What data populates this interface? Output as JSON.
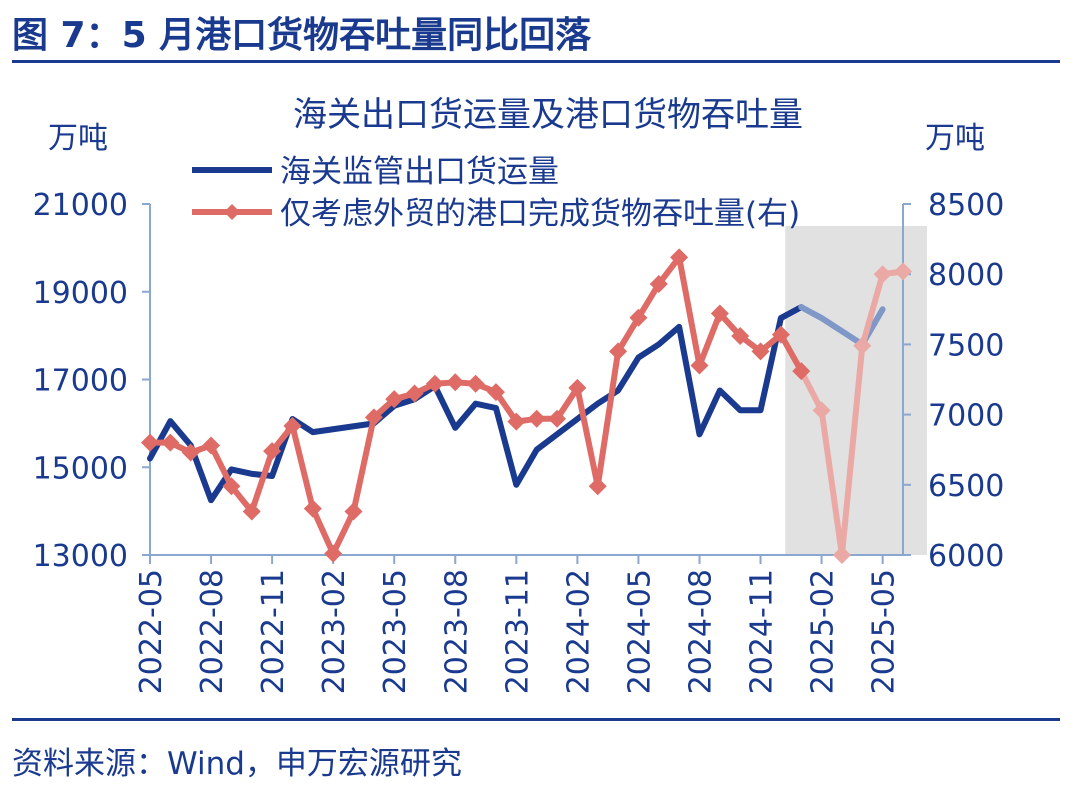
{
  "figure_title": "图 7：5 月港口货物吞吐量同比回落",
  "source": "资料来源：Wind，申万宏源研究",
  "chart_data": {
    "type": "line",
    "title": "海关出口货运量及港口货物吞吐量",
    "ylabel_left": "万吨",
    "ylabel_right": "万吨",
    "ylim_left": [
      13000,
      21000
    ],
    "ylim_right": [
      6000,
      8500
    ],
    "yticks_left": [
      "21000",
      "19000",
      "17000",
      "15000",
      "13000"
    ],
    "yticks_right": [
      "8500",
      "8000",
      "7500",
      "7000",
      "6500",
      "6000"
    ],
    "x_range": [
      "2022-05",
      "2025-06"
    ],
    "xtick_labels": [
      "2022-05",
      "2022-08",
      "2022-11",
      "2023-02",
      "2023-05",
      "2023-08",
      "2023-11",
      "2024-02",
      "2024-05",
      "2024-08",
      "2024-11",
      "2025-02",
      "2025-05"
    ],
    "highlight_range": [
      "2025-01",
      "2025-06"
    ],
    "legend_position": "top-center",
    "grid": false,
    "series": [
      {
        "name": "海关监管出口货运量",
        "axis": "left",
        "color": "#1a3a8f",
        "marker": "none",
        "points": [
          {
            "x": "2022-05",
            "y": 15200
          },
          {
            "x": "2022-06",
            "y": 16050
          },
          {
            "x": "2022-07",
            "y": 15500
          },
          {
            "x": "2022-08",
            "y": 14250
          },
          {
            "x": "2022-09",
            "y": 14950
          },
          {
            "x": "2022-10",
            "y": 14850
          },
          {
            "x": "2022-11",
            "y": 14800
          },
          {
            "x": "2022-12",
            "y": 16100
          },
          {
            "x": "2023-01",
            "y": 15800
          },
          {
            "x": "2023-04",
            "y": 16000
          },
          {
            "x": "2023-05",
            "y": 16400
          },
          {
            "x": "2023-06",
            "y": 16550
          },
          {
            "x": "2023-07",
            "y": 16850
          },
          {
            "x": "2023-08",
            "y": 15900
          },
          {
            "x": "2023-09",
            "y": 16450
          },
          {
            "x": "2023-10",
            "y": 16350
          },
          {
            "x": "2023-11",
            "y": 14600
          },
          {
            "x": "2023-12",
            "y": 15400
          },
          {
            "x": "2024-03",
            "y": 16450
          },
          {
            "x": "2024-04",
            "y": 16750
          },
          {
            "x": "2024-05",
            "y": 17500
          },
          {
            "x": "2024-06",
            "y": 17800
          },
          {
            "x": "2024-07",
            "y": 18200
          },
          {
            "x": "2024-08",
            "y": 15750
          },
          {
            "x": "2024-09",
            "y": 16750
          },
          {
            "x": "2024-10",
            "y": 16300
          },
          {
            "x": "2024-11",
            "y": 16300
          },
          {
            "x": "2024-12",
            "y": 18400
          },
          {
            "x": "2025-01",
            "y": 18650
          },
          {
            "x": "2025-02",
            "y": 18400
          },
          {
            "x": "2025-04",
            "y": 17800
          },
          {
            "x": "2025-05",
            "y": 18600
          }
        ]
      },
      {
        "name": "仅考虑外贸的港口完成货物吞吐量(右)",
        "axis": "right",
        "color": "#de6b66",
        "marker": "diamond",
        "points": [
          {
            "x": "2022-05",
            "y": 6800
          },
          {
            "x": "2022-06",
            "y": 6800
          },
          {
            "x": "2022-07",
            "y": 6730
          },
          {
            "x": "2022-08",
            "y": 6780
          },
          {
            "x": "2022-09",
            "y": 6490
          },
          {
            "x": "2022-10",
            "y": 6310
          },
          {
            "x": "2022-11",
            "y": 6740
          },
          {
            "x": "2022-12",
            "y": 6920
          },
          {
            "x": "2023-01",
            "y": 6330
          },
          {
            "x": "2023-02",
            "y": 6010
          },
          {
            "x": "2023-03",
            "y": 6310
          },
          {
            "x": "2023-04",
            "y": 6980
          },
          {
            "x": "2023-05",
            "y": 7110
          },
          {
            "x": "2023-06",
            "y": 7150
          },
          {
            "x": "2023-07",
            "y": 7220
          },
          {
            "x": "2023-08",
            "y": 7230
          },
          {
            "x": "2023-09",
            "y": 7220
          },
          {
            "x": "2023-10",
            "y": 7160
          },
          {
            "x": "2023-11",
            "y": 6950
          },
          {
            "x": "2023-12",
            "y": 6970
          },
          {
            "x": "2024-01",
            "y": 6970
          },
          {
            "x": "2024-02",
            "y": 7190
          },
          {
            "x": "2024-03",
            "y": 6490
          },
          {
            "x": "2024-04",
            "y": 7450
          },
          {
            "x": "2024-05",
            "y": 7690
          },
          {
            "x": "2024-06",
            "y": 7930
          },
          {
            "x": "2024-07",
            "y": 8120
          },
          {
            "x": "2024-08",
            "y": 7350
          },
          {
            "x": "2024-09",
            "y": 7720
          },
          {
            "x": "2024-10",
            "y": 7560
          },
          {
            "x": "2024-11",
            "y": 7450
          },
          {
            "x": "2024-12",
            "y": 7570
          },
          {
            "x": "2025-01",
            "y": 7310
          },
          {
            "x": "2025-02",
            "y": 7030
          },
          {
            "x": "2025-03",
            "y": 6000
          },
          {
            "x": "2025-04",
            "y": 7490
          },
          {
            "x": "2025-05",
            "y": 8000
          },
          {
            "x": "2025-06",
            "y": 8020
          }
        ]
      }
    ]
  }
}
